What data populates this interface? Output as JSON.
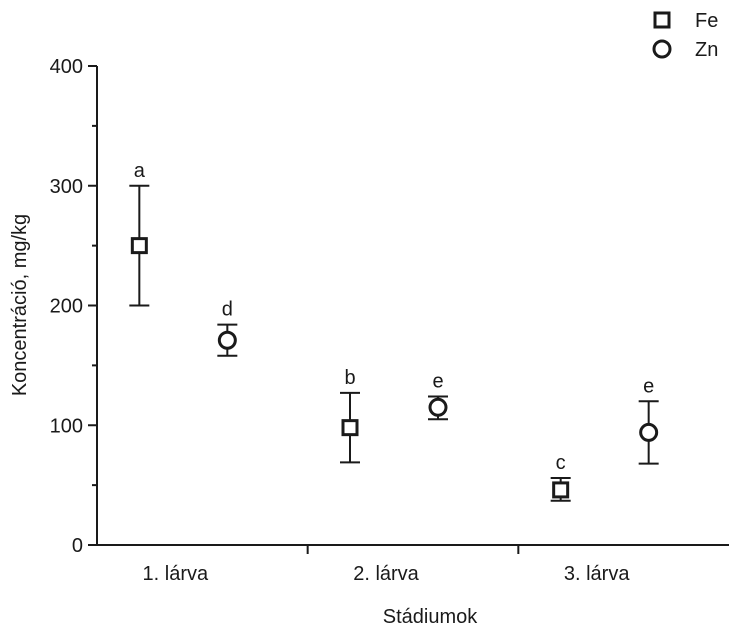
{
  "chart_data": {
    "type": "scatter",
    "title": "",
    "xlabel": "Stádiumok",
    "ylabel": "Koncentráció, mg/kg",
    "categories": [
      "1. lárva",
      "2. lárva",
      "3. lárva"
    ],
    "ylim": [
      0,
      400
    ],
    "yticks": [
      0,
      100,
      200,
      300,
      400
    ],
    "grid": false,
    "legend_position": "top-right",
    "series": [
      {
        "name": "Fe",
        "marker": "square",
        "values": [
          250,
          98,
          46
        ],
        "err_low": [
          200,
          69,
          37
        ],
        "err_high": [
          300,
          127,
          56
        ],
        "labels": [
          "a",
          "b",
          "c"
        ]
      },
      {
        "name": "Zn",
        "marker": "circle",
        "values": [
          171,
          115,
          94
        ],
        "err_low": [
          158,
          105,
          68
        ],
        "err_high": [
          184,
          124,
          120
        ],
        "labels": [
          "d",
          "e",
          "e"
        ]
      }
    ]
  }
}
